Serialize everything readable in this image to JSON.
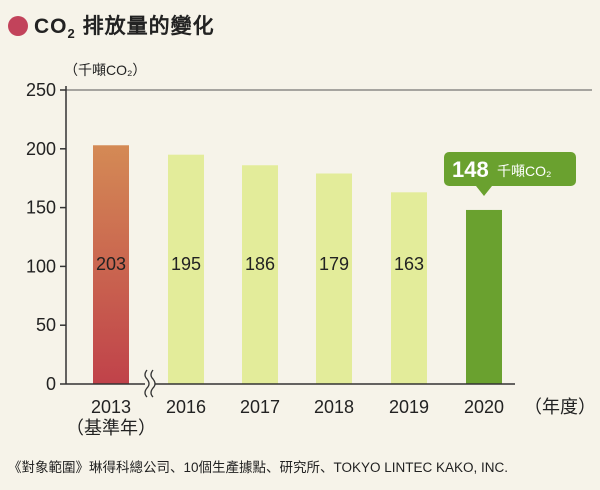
{
  "title": {
    "prefix": "CO",
    "sub": "2",
    "suffix": " 排放量的變化"
  },
  "unit_label": "（千噸CO₂）",
  "footnote": "《對象範圍》琳得科總公司、10個生產據點、研究所、TOKYO LINTEC KAKO, INC.",
  "colors": {
    "title_dot": "#c2435b",
    "base_bar_top": "#d48a55",
    "base_bar_bottom": "#c0424a",
    "bar_light": "#e3ec9a",
    "bar_2020": "#6aa12f",
    "callout_bg": "#6aa12f",
    "axis": "#333333"
  },
  "chart_data": {
    "type": "bar",
    "ylim": [
      0,
      250
    ],
    "yticks": [
      0,
      50,
      100,
      150,
      200,
      250
    ],
    "categories": [
      "2013",
      "2016",
      "2017",
      "2018",
      "2019",
      "2020"
    ],
    "category_sublabels": [
      "（基準年）",
      "",
      "",
      "",
      "",
      ""
    ],
    "values": [
      203,
      195,
      186,
      179,
      163,
      148
    ],
    "data_labels": [
      "203",
      "195",
      "186",
      "179",
      "163",
      ""
    ],
    "x_unit_label": "（年度）",
    "axis_break_between": [
      "2013",
      "2016"
    ],
    "callout": {
      "category": "2020",
      "value": "148",
      "unit": "千噸CO₂"
    }
  }
}
